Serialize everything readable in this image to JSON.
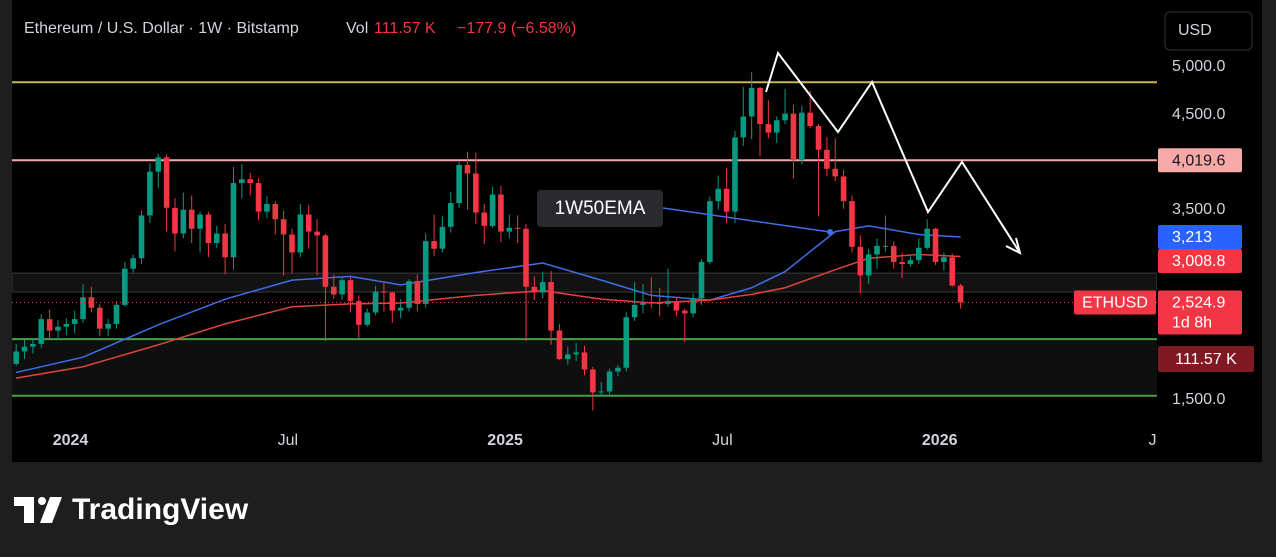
{
  "chart_data": {
    "type": "candlestick",
    "title": "Ethereum / U.S. Dollar · 1W · Bitstamp",
    "volume_title": "Vol",
    "volume_text": "111.57 K",
    "change_text": "−177.9 (−6.58%)",
    "currency": "USD",
    "annotation": "1W50EMA",
    "brand": "TradingView",
    "up_color": "#089981",
    "down_color": "#f23645",
    "xlim": [
      0,
      137
    ],
    "xticks": [
      {
        "value": 7,
        "label": "2024"
      },
      {
        "value": 33,
        "label": "Jul"
      },
      {
        "value": 59,
        "label": "2025"
      },
      {
        "value": 85,
        "label": "Jul"
      },
      {
        "value": 111,
        "label": "2026"
      },
      {
        "value": 137,
        "label": "Ju"
      }
    ],
    "ylim": [
      1311,
      5578
    ],
    "yticks": [
      {
        "value": 5000,
        "label": "5,000.0"
      },
      {
        "value": 4500,
        "label": "4,500.0"
      },
      {
        "value": 3500,
        "label": "3,500.0"
      },
      {
        "value": 1500,
        "label": "1,500.0"
      }
    ],
    "ohlc": [
      [
        1880,
        2090,
        1860,
        2010
      ],
      [
        2010,
        2130,
        1930,
        2060
      ],
      [
        2060,
        2140,
        1990,
        2090
      ],
      [
        2090,
        2400,
        2050,
        2350
      ],
      [
        2350,
        2450,
        2150,
        2230
      ],
      [
        2230,
        2340,
        2130,
        2270
      ],
      [
        2270,
        2360,
        2180,
        2300
      ],
      [
        2300,
        2440,
        2200,
        2350
      ],
      [
        2350,
        2720,
        2310,
        2580
      ],
      [
        2580,
        2690,
        2420,
        2470
      ],
      [
        2470,
        2510,
        2170,
        2250
      ],
      [
        2250,
        2350,
        2170,
        2300
      ],
      [
        2300,
        2540,
        2250,
        2500
      ],
      [
        2500,
        2950,
        2480,
        2880
      ],
      [
        2880,
        3030,
        2840,
        2990
      ],
      [
        2990,
        3490,
        2930,
        3440
      ],
      [
        3440,
        3990,
        3360,
        3900
      ],
      [
        3900,
        4090,
        3730,
        4050
      ],
      [
        4050,
        4080,
        3270,
        3520
      ],
      [
        3520,
        3620,
        3060,
        3250
      ],
      [
        3250,
        3680,
        3200,
        3500
      ],
      [
        3500,
        3650,
        3150,
        3300
      ],
      [
        3300,
        3480,
        3050,
        3450
      ],
      [
        3450,
        3480,
        3000,
        3150
      ],
      [
        3150,
        3330,
        3100,
        3250
      ],
      [
        3250,
        3350,
        2820,
        3000
      ],
      [
        3000,
        3950,
        2870,
        3780
      ],
      [
        3780,
        3980,
        3620,
        3820
      ],
      [
        3820,
        3890,
        3650,
        3780
      ],
      [
        3780,
        3830,
        3390,
        3480
      ],
      [
        3480,
        3640,
        3410,
        3560
      ],
      [
        3560,
        3590,
        3240,
        3400
      ],
      [
        3400,
        3490,
        2810,
        3240
      ],
      [
        3240,
        3300,
        2830,
        3050
      ],
      [
        3050,
        3560,
        3000,
        3450
      ],
      [
        3450,
        3550,
        3090,
        3270
      ],
      [
        3270,
        3400,
        2810,
        3230
      ],
      [
        3230,
        3250,
        2120,
        2690
      ],
      [
        2690,
        2820,
        2560,
        2610
      ],
      [
        2610,
        2800,
        2550,
        2760
      ],
      [
        2760,
        2790,
        2420,
        2540
      ],
      [
        2540,
        2600,
        2150,
        2290
      ],
      [
        2290,
        2460,
        2270,
        2420
      ],
      [
        2420,
        2700,
        2390,
        2640
      ],
      [
        2640,
        2730,
        2430,
        2630
      ],
      [
        2630,
        2640,
        2310,
        2440
      ],
      [
        2440,
        2560,
        2360,
        2470
      ],
      [
        2470,
        2770,
        2430,
        2750
      ],
      [
        2750,
        2820,
        2430,
        2510
      ],
      [
        2510,
        3250,
        2470,
        3170
      ],
      [
        3170,
        3450,
        3010,
        3090
      ],
      [
        3090,
        3430,
        3050,
        3320
      ],
      [
        3320,
        3690,
        3260,
        3570
      ],
      [
        3570,
        4000,
        3520,
        3970
      ],
      [
        3970,
        4110,
        3500,
        3880
      ],
      [
        3880,
        4100,
        3350,
        3470
      ],
      [
        3470,
        3560,
        3140,
        3330
      ],
      [
        3330,
        3740,
        3310,
        3660
      ],
      [
        3660,
        3750,
        3160,
        3270
      ],
      [
        3270,
        3450,
        3200,
        3310
      ],
      [
        3310,
        3440,
        3150,
        3300
      ],
      [
        3300,
        3350,
        2120,
        2690
      ],
      [
        2690,
        2800,
        2550,
        2630
      ],
      [
        2630,
        2850,
        2570,
        2740
      ],
      [
        2740,
        2860,
        2080,
        2230
      ],
      [
        2230,
        2300,
        1920,
        1930
      ],
      [
        1930,
        2060,
        1870,
        1980
      ],
      [
        1980,
        2100,
        1910,
        2000
      ],
      [
        2000,
        2070,
        1760,
        1820
      ],
      [
        1820,
        1850,
        1390,
        1580
      ],
      [
        1580,
        1690,
        1540,
        1590
      ],
      [
        1590,
        1830,
        1560,
        1800
      ],
      [
        1800,
        1870,
        1750,
        1840
      ],
      [
        1840,
        2420,
        1800,
        2370
      ],
      [
        2370,
        2740,
        2330,
        2500
      ],
      [
        2500,
        2720,
        2410,
        2530
      ],
      [
        2530,
        2790,
        2470,
        2520
      ],
      [
        2520,
        2680,
        2380,
        2510
      ],
      [
        2510,
        2880,
        2480,
        2540
      ],
      [
        2540,
        2570,
        2380,
        2440
      ],
      [
        2440,
        2460,
        2110,
        2410
      ],
      [
        2410,
        2620,
        2370,
        2570
      ],
      [
        2570,
        2980,
        2500,
        2950
      ],
      [
        2950,
        3640,
        2930,
        3590
      ],
      [
        3590,
        3860,
        3500,
        3720
      ],
      [
        3720,
        3940,
        3360,
        3480
      ],
      [
        3480,
        4330,
        3360,
        4260
      ],
      [
        4260,
        4790,
        4170,
        4480
      ],
      [
        4480,
        4950,
        4240,
        4780
      ],
      [
        4780,
        4790,
        4060,
        4400
      ],
      [
        4400,
        4650,
        4250,
        4310
      ],
      [
        4310,
        4480,
        4200,
        4440
      ],
      [
        4440,
        4770,
        4400,
        4510
      ],
      [
        4510,
        4600,
        3830,
        4020
      ],
      [
        4020,
        4590,
        3980,
        4520
      ],
      [
        4520,
        4750,
        4360,
        4380
      ],
      [
        4380,
        4400,
        3430,
        4130
      ],
      [
        4130,
        4260,
        3850,
        3930
      ],
      [
        3930,
        4250,
        3800,
        3850
      ],
      [
        3850,
        3920,
        3510,
        3590
      ],
      [
        3590,
        3650,
        3050,
        3110
      ],
      [
        3110,
        3230,
        2620,
        2810
      ],
      [
        2810,
        3090,
        2720,
        3030
      ],
      [
        3030,
        3200,
        2880,
        3120
      ],
      [
        3120,
        3440,
        3060,
        3120
      ],
      [
        3120,
        3170,
        2880,
        2950
      ],
      [
        2950,
        3050,
        2780,
        2930
      ],
      [
        2930,
        3010,
        2900,
        2970
      ],
      [
        2970,
        3200,
        2930,
        3100
      ],
      [
        3100,
        3400,
        3080,
        3300
      ],
      [
        3300,
        3310,
        2920,
        2950
      ],
      [
        2950,
        3050,
        2860,
        3000
      ],
      [
        3000,
        3040,
        2690,
        2702.8
      ],
      [
        2702.8,
        2720,
        2460,
        2524.9
      ]
    ],
    "lines": [
      {
        "color": "#3f6ee8",
        "x": [
          0,
          8,
          17,
          25,
          33,
          40,
          46,
          55,
          63,
          70,
          76,
          83,
          88,
          92,
          98,
          102,
          108,
          113
        ],
        "values": [
          1790,
          1950,
          2290,
          2560,
          2760,
          2800,
          2710,
          2840,
          2940,
          2760,
          2600,
          2550,
          2680,
          2850,
          3270,
          3330,
          3240,
          3213
        ]
      },
      {
        "color": "#e0443e",
        "x": [
          0,
          8,
          17,
          25,
          33,
          40,
          46,
          55,
          63,
          70,
          76,
          83,
          88,
          92,
          98,
          102,
          108,
          113
        ],
        "values": [
          1730,
          1850,
          2080,
          2300,
          2480,
          2510,
          2520,
          2600,
          2650,
          2560,
          2520,
          2550,
          2610,
          2680,
          2870,
          2990,
          3030,
          3008.8
        ]
      }
    ],
    "levels": [
      {
        "value": 4840,
        "color": "#c9b458"
      },
      {
        "value": 4019.6,
        "color": "#f7a9a8"
      },
      {
        "value": 2140,
        "color": "#43a047"
      },
      {
        "value": 1545,
        "color": "#43a047"
      }
    ],
    "zone": [
      2635,
      2834
    ],
    "price_labels": [
      {
        "value": 4019.6,
        "label": "4,019.6",
        "color": "#f7a9a8",
        "text_color": "#131722"
      },
      {
        "value": 3213,
        "label": "3,213",
        "color": "#2962ff",
        "text_color": "#ffffff"
      },
      {
        "value": 3008.8,
        "label": "3,008.8",
        "color": "#f23645",
        "text_color": "#ffffff"
      },
      {
        "value": 2524.9,
        "label": "2,524.9",
        "color": "#f23645",
        "text_color": "#ffffff",
        "symbol": "ETHUSD",
        "countdown": "1d 8h"
      }
    ]
  }
}
